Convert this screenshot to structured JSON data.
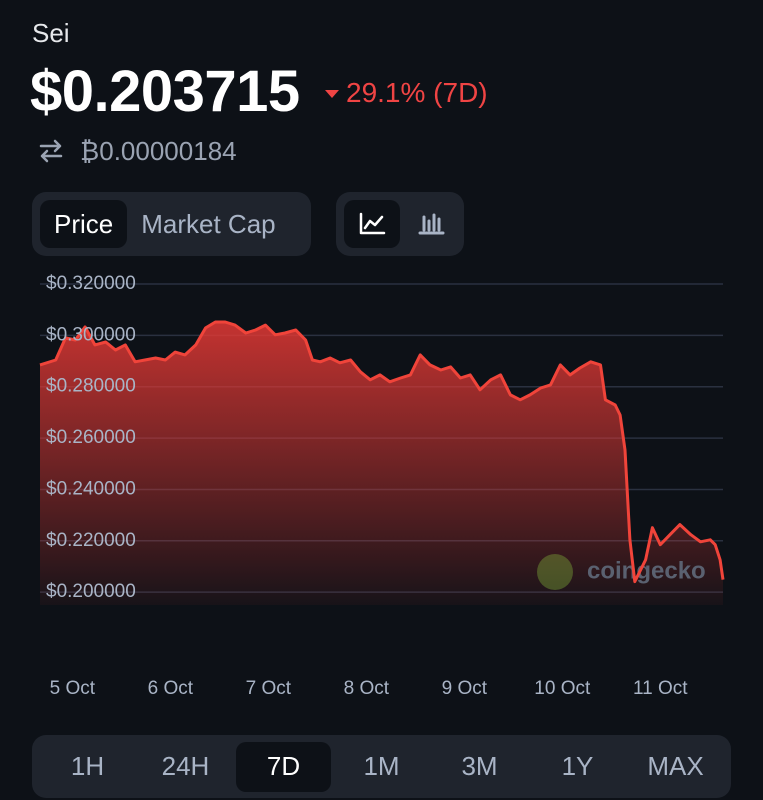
{
  "header": {
    "coin": "Sei",
    "price": "$0.203715",
    "change": "29.1% (7D)",
    "btc_price": "₿0.00000184"
  },
  "tabs": {
    "items": [
      "Price",
      "Market Cap"
    ],
    "active": 0
  },
  "periods": {
    "items": [
      "1H",
      "24H",
      "7D",
      "1M",
      "3M",
      "1Y",
      "MAX"
    ],
    "active": 2
  },
  "chart_data": {
    "type": "area",
    "watermark": "coingecko",
    "color": "#f0443a",
    "x": [
      -0.33,
      -0.17,
      -0.07,
      0.03,
      0.13,
      0.23,
      0.34,
      0.44,
      0.54,
      0.64,
      0.74,
      0.85,
      0.95,
      1.05,
      1.15,
      1.26,
      1.36,
      1.46,
      1.56,
      1.66,
      1.77,
      1.87,
      1.97,
      2.07,
      2.17,
      2.28,
      2.38,
      2.45,
      2.53,
      2.63,
      2.73,
      2.84,
      2.94,
      3.04,
      3.14,
      3.24,
      3.35,
      3.45,
      3.55,
      3.65,
      3.76,
      3.86,
      3.96,
      4.06,
      4.16,
      4.27,
      4.37,
      4.47,
      4.57,
      4.67,
      4.78,
      4.88,
      4.98,
      5.08,
      5.18,
      5.29,
      5.39,
      5.44,
      5.54,
      5.59,
      5.64,
      5.69,
      5.74,
      5.85,
      5.92,
      6.0,
      6.1,
      6.2,
      6.31,
      6.41,
      6.51,
      6.56,
      6.61,
      6.64
    ],
    "values": [
      0.2885,
      0.2904,
      0.299,
      0.2982,
      0.3033,
      0.2963,
      0.2974,
      0.2943,
      0.2963,
      0.2897,
      0.2904,
      0.2912,
      0.2904,
      0.2935,
      0.2924,
      0.2963,
      0.3029,
      0.3052,
      0.3052,
      0.304,
      0.3009,
      0.3021,
      0.304,
      0.3002,
      0.3009,
      0.3021,
      0.2982,
      0.2904,
      0.2897,
      0.2912,
      0.2893,
      0.2904,
      0.2858,
      0.2827,
      0.2846,
      0.2819,
      0.2834,
      0.2846,
      0.2924,
      0.2885,
      0.2865,
      0.2877,
      0.2834,
      0.2846,
      0.2788,
      0.2827,
      0.2846,
      0.2768,
      0.2749,
      0.2768,
      0.2795,
      0.2807,
      0.2885,
      0.2846,
      0.2873,
      0.2897,
      0.2885,
      0.2749,
      0.2729,
      0.269,
      0.2554,
      0.2204,
      0.2041,
      0.2126,
      0.2251,
      0.2185,
      0.2224,
      0.2263,
      0.2224,
      0.2196,
      0.2204,
      0.2185,
      0.2126,
      0.2049
    ],
    "xlim": [
      -0.33,
      6.64
    ],
    "xticks": [
      {
        "value": 0,
        "label": "5 Oct"
      },
      {
        "value": 1,
        "label": "6 Oct"
      },
      {
        "value": 2,
        "label": "7 Oct"
      },
      {
        "value": 3,
        "label": "8 Oct"
      },
      {
        "value": 4,
        "label": "9 Oct"
      },
      {
        "value": 5,
        "label": "10 Oct"
      },
      {
        "value": 6,
        "label": "11 Oct"
      }
    ],
    "ylim": [
      0.195,
      0.32
    ],
    "yticks": [
      {
        "value": 0.2,
        "label": "$0.200000"
      },
      {
        "value": 0.22,
        "label": "$0.220000"
      },
      {
        "value": 0.24,
        "label": "$0.240000"
      },
      {
        "value": 0.26,
        "label": "$0.260000"
      },
      {
        "value": 0.28,
        "label": "$0.280000"
      },
      {
        "value": 0.3,
        "label": "$0.300000"
      },
      {
        "value": 0.32,
        "label": "$0.320000"
      }
    ],
    "grid": true
  }
}
